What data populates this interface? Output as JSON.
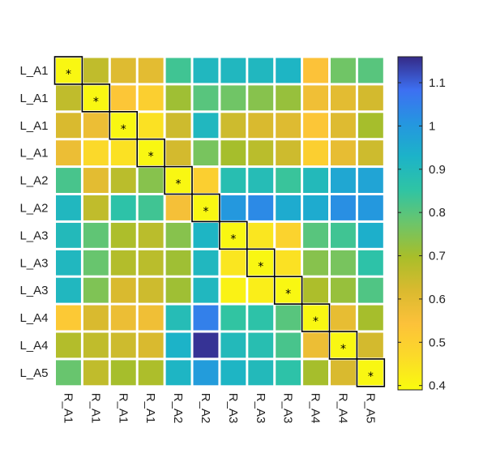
{
  "chart_data": {
    "type": "heatmap",
    "title": "",
    "xlabel": "",
    "ylabel": "",
    "row_labels": [
      "L_A1",
      "L_A1",
      "L_A1",
      "L_A1",
      "L_A2",
      "L_A2",
      "L_A3",
      "L_A3",
      "L_A3",
      "L_A4",
      "L_A4",
      "L_A5"
    ],
    "col_labels": [
      "R_A1",
      "R_A1",
      "R_A1",
      "R_A1",
      "R_A2",
      "R_A2",
      "R_A3",
      "R_A3",
      "R_A3",
      "R_A4",
      "R_A4",
      "R_A5"
    ],
    "values": [
      [
        0.4,
        0.66,
        0.61,
        0.6,
        0.83,
        0.91,
        0.91,
        0.91,
        0.92,
        0.54,
        0.77,
        0.8
      ],
      [
        0.66,
        0.4,
        0.53,
        0.5,
        0.71,
        0.8,
        0.77,
        0.74,
        0.72,
        0.57,
        0.6,
        0.63
      ],
      [
        0.62,
        0.58,
        0.4,
        0.45,
        0.64,
        0.91,
        0.64,
        0.62,
        0.61,
        0.53,
        0.61,
        0.7
      ],
      [
        0.58,
        0.47,
        0.45,
        0.4,
        0.63,
        0.76,
        0.7,
        0.67,
        0.64,
        0.5,
        0.59,
        0.64
      ],
      [
        0.82,
        0.6,
        0.67,
        0.74,
        0.4,
        0.5,
        0.88,
        0.89,
        0.84,
        0.9,
        0.96,
        0.97
      ],
      [
        0.91,
        0.66,
        0.86,
        0.83,
        0.56,
        0.4,
        1.0,
        1.03,
        0.95,
        0.95,
        1.02,
        1.0
      ],
      [
        0.9,
        0.79,
        0.69,
        0.67,
        0.74,
        0.92,
        0.4,
        0.44,
        0.49,
        0.8,
        0.83,
        0.94
      ],
      [
        0.91,
        0.78,
        0.68,
        0.67,
        0.71,
        0.91,
        0.44,
        0.4,
        0.45,
        0.74,
        0.76,
        0.86
      ],
      [
        0.91,
        0.75,
        0.62,
        0.64,
        0.71,
        0.91,
        0.41,
        0.42,
        0.4,
        0.69,
        0.72,
        0.81
      ],
      [
        0.52,
        0.62,
        0.58,
        0.57,
        0.89,
        1.05,
        0.85,
        0.86,
        0.8,
        0.4,
        0.59,
        0.7
      ],
      [
        0.68,
        0.66,
        0.64,
        0.62,
        0.93,
        1.15,
        0.9,
        0.88,
        0.82,
        0.58,
        0.4,
        0.63
      ],
      [
        0.78,
        0.66,
        0.7,
        0.69,
        0.92,
        0.99,
        0.92,
        0.9,
        0.86,
        0.7,
        0.62,
        0.4
      ]
    ],
    "highlight": "diagonal",
    "highlight_marker": "*",
    "colormap": "parula",
    "clim": [
      0.39,
      1.16
    ],
    "colorbar_ticks": [
      0.4,
      0.5,
      0.6,
      0.7,
      0.8,
      0.9,
      1,
      1.1
    ],
    "colorbar_tick_labels": [
      "0.4",
      "0.5",
      "0.6",
      "0.7",
      "0.8",
      "0.9",
      "1",
      "1.1"
    ],
    "grid": true,
    "grid_color": "#ffffff",
    "highlight_box_color": "#000000"
  }
}
